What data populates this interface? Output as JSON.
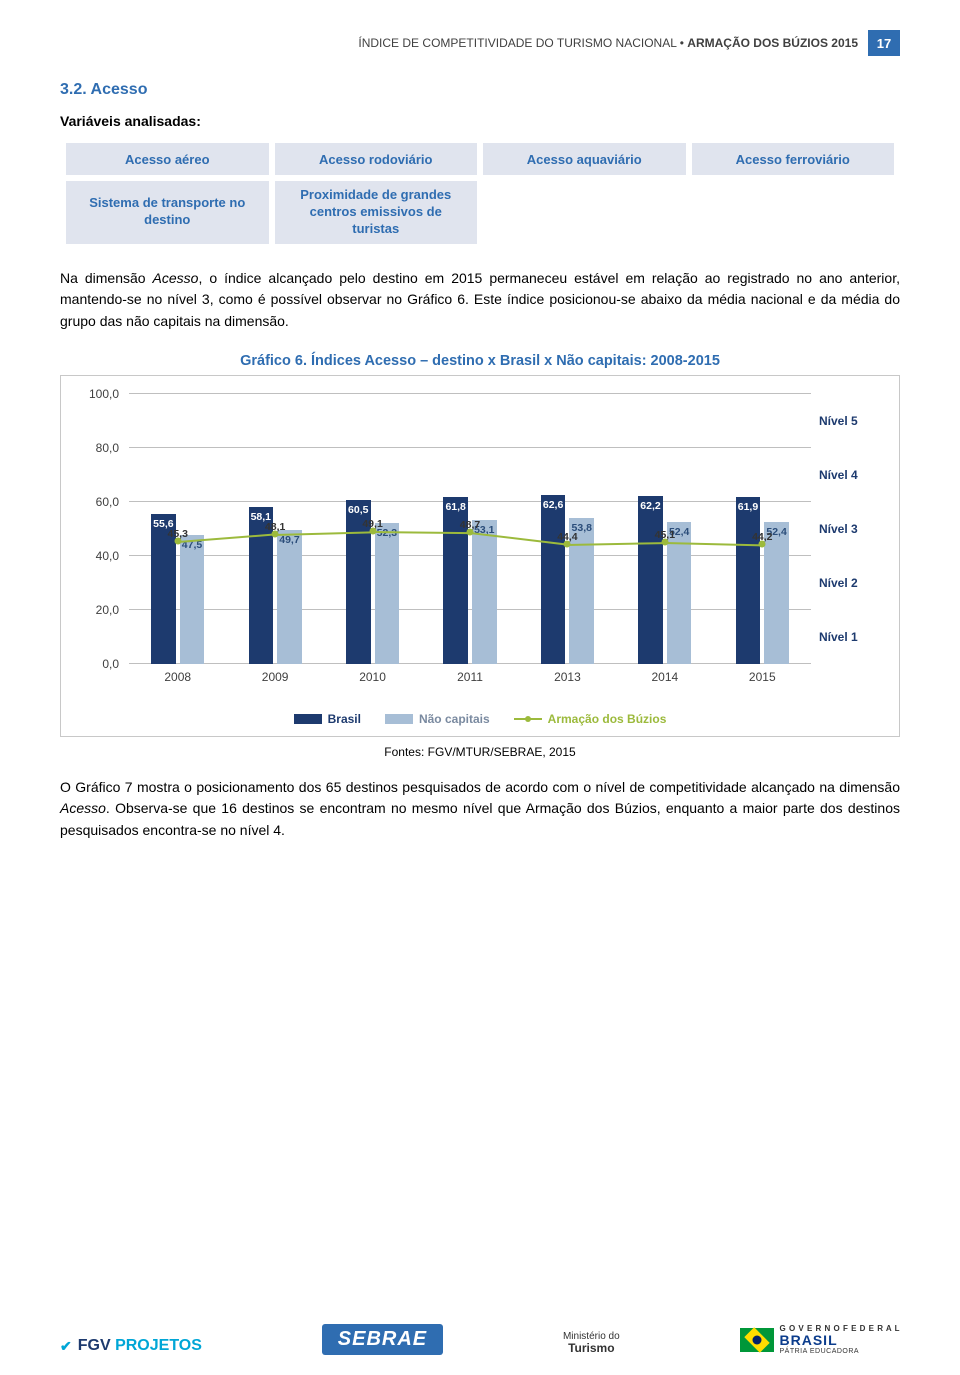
{
  "header": {
    "pre": "ÍNDICE DE COMPETITIVIDADE DO TURISMO NACIONAL • ",
    "bold": "ARMAÇÃO DOS BÚZIOS 2015",
    "page_number": "17"
  },
  "section_title": "3.2. Acesso",
  "variables_label": "Variáveis analisadas:",
  "variables": {
    "row1": [
      "Acesso aéreo",
      "Acesso rodoviário",
      "Acesso aquaviário",
      "Acesso ferroviário"
    ],
    "row2": [
      "Sistema de transporte no destino",
      "Proximidade de grandes centros emissivos de turistas",
      "",
      ""
    ]
  },
  "para1": {
    "p1": "Na dimensão ",
    "it": "Acesso",
    "p2": ", o índice alcançado pelo destino em 2015 permaneceu estável em relação ao registrado no ano anterior, mantendo-se no nível 3, como é possível observar no Gráfico 6. Este índice posicionou-se abaixo da média nacional e da média do grupo das não capitais na dimensão."
  },
  "chart": {
    "title": "Gráfico 6. Índices Acesso – destino x Brasil x Não capitais: 2008-2015",
    "type": "bar+line",
    "background_color": "#ffffff",
    "grid_color": "#bfbfbf",
    "ylim": [
      0,
      100
    ],
    "yticks": [
      0,
      20,
      40,
      60,
      80,
      100
    ],
    "ytick_labels": [
      "0,0",
      "20,0",
      "40,0",
      "60,0",
      "80,0",
      "100,0"
    ],
    "nivel_labels": [
      {
        "y": 90,
        "text": "Nível 5"
      },
      {
        "y": 70,
        "text": "Nível 4"
      },
      {
        "y": 50,
        "text": "Nível 3"
      },
      {
        "y": 30,
        "text": "Nível 2"
      },
      {
        "y": 10,
        "text": "Nível 1"
      }
    ],
    "years": [
      "2008",
      "2009",
      "2010",
      "2011",
      "2013",
      "2014",
      "2015"
    ],
    "series": {
      "brasil": {
        "label": "Brasil",
        "color": "#1d3a6e",
        "values": [
          55.6,
          58.1,
          60.5,
          61.8,
          62.6,
          62.2,
          61.9
        ]
      },
      "nao_capitais": {
        "label": "Não capitais",
        "color": "#a7bed6",
        "values": [
          47.5,
          49.7,
          52.3,
          53.1,
          53.8,
          52.4,
          52.4
        ]
      },
      "armacao": {
        "label": "Armação dos Búzios",
        "color": "#9cba3c",
        "values": [
          45.3,
          48.1,
          49.1,
          48.7,
          44.4,
          45.1,
          44.2
        ]
      }
    },
    "value_labels": {
      "brasil": [
        "55,6",
        "58,1",
        "60,5",
        "61,8",
        "62,6",
        "62,2",
        "61,9"
      ],
      "nao_capitais": [
        "47,5",
        "49,7",
        "52,3",
        "53,1",
        "53,8",
        "52,4",
        "52,4"
      ],
      "armacao": [
        "45,3",
        "48,1",
        "49,1",
        "48,7",
        "44,4",
        "45,1",
        "44,2"
      ]
    },
    "bar_width_pct": 3.6,
    "bar_gap_pct": 0.6,
    "label_fontsize": 10.5,
    "axis_fontsize": 12
  },
  "source": "Fontes: FGV/MTUR/SEBRAE, 2015",
  "para2": {
    "p1": "O Gráfico 7 mostra o posicionamento dos 65 destinos pesquisados de acordo com o nível de competitividade alcançado na dimensão ",
    "it": "Acesso",
    "p2": ". Observa-se que 16 destinos se encontram no mesmo nível que Armação dos Búzios, enquanto a maior parte dos destinos pesquisados encontra-se no nível 4."
  },
  "footer": {
    "fgv": {
      "a": "FGV",
      "b": "PROJETOS",
      "check": "✔"
    },
    "sebrae": "SEBRAE",
    "min": {
      "l1": "Ministério do",
      "l2": "Turismo"
    },
    "brasil": {
      "l1": "G O V E R N O  F E D E R A L",
      "l2": "BRASIL",
      "l3": "PÁTRIA EDUCADORA"
    }
  }
}
